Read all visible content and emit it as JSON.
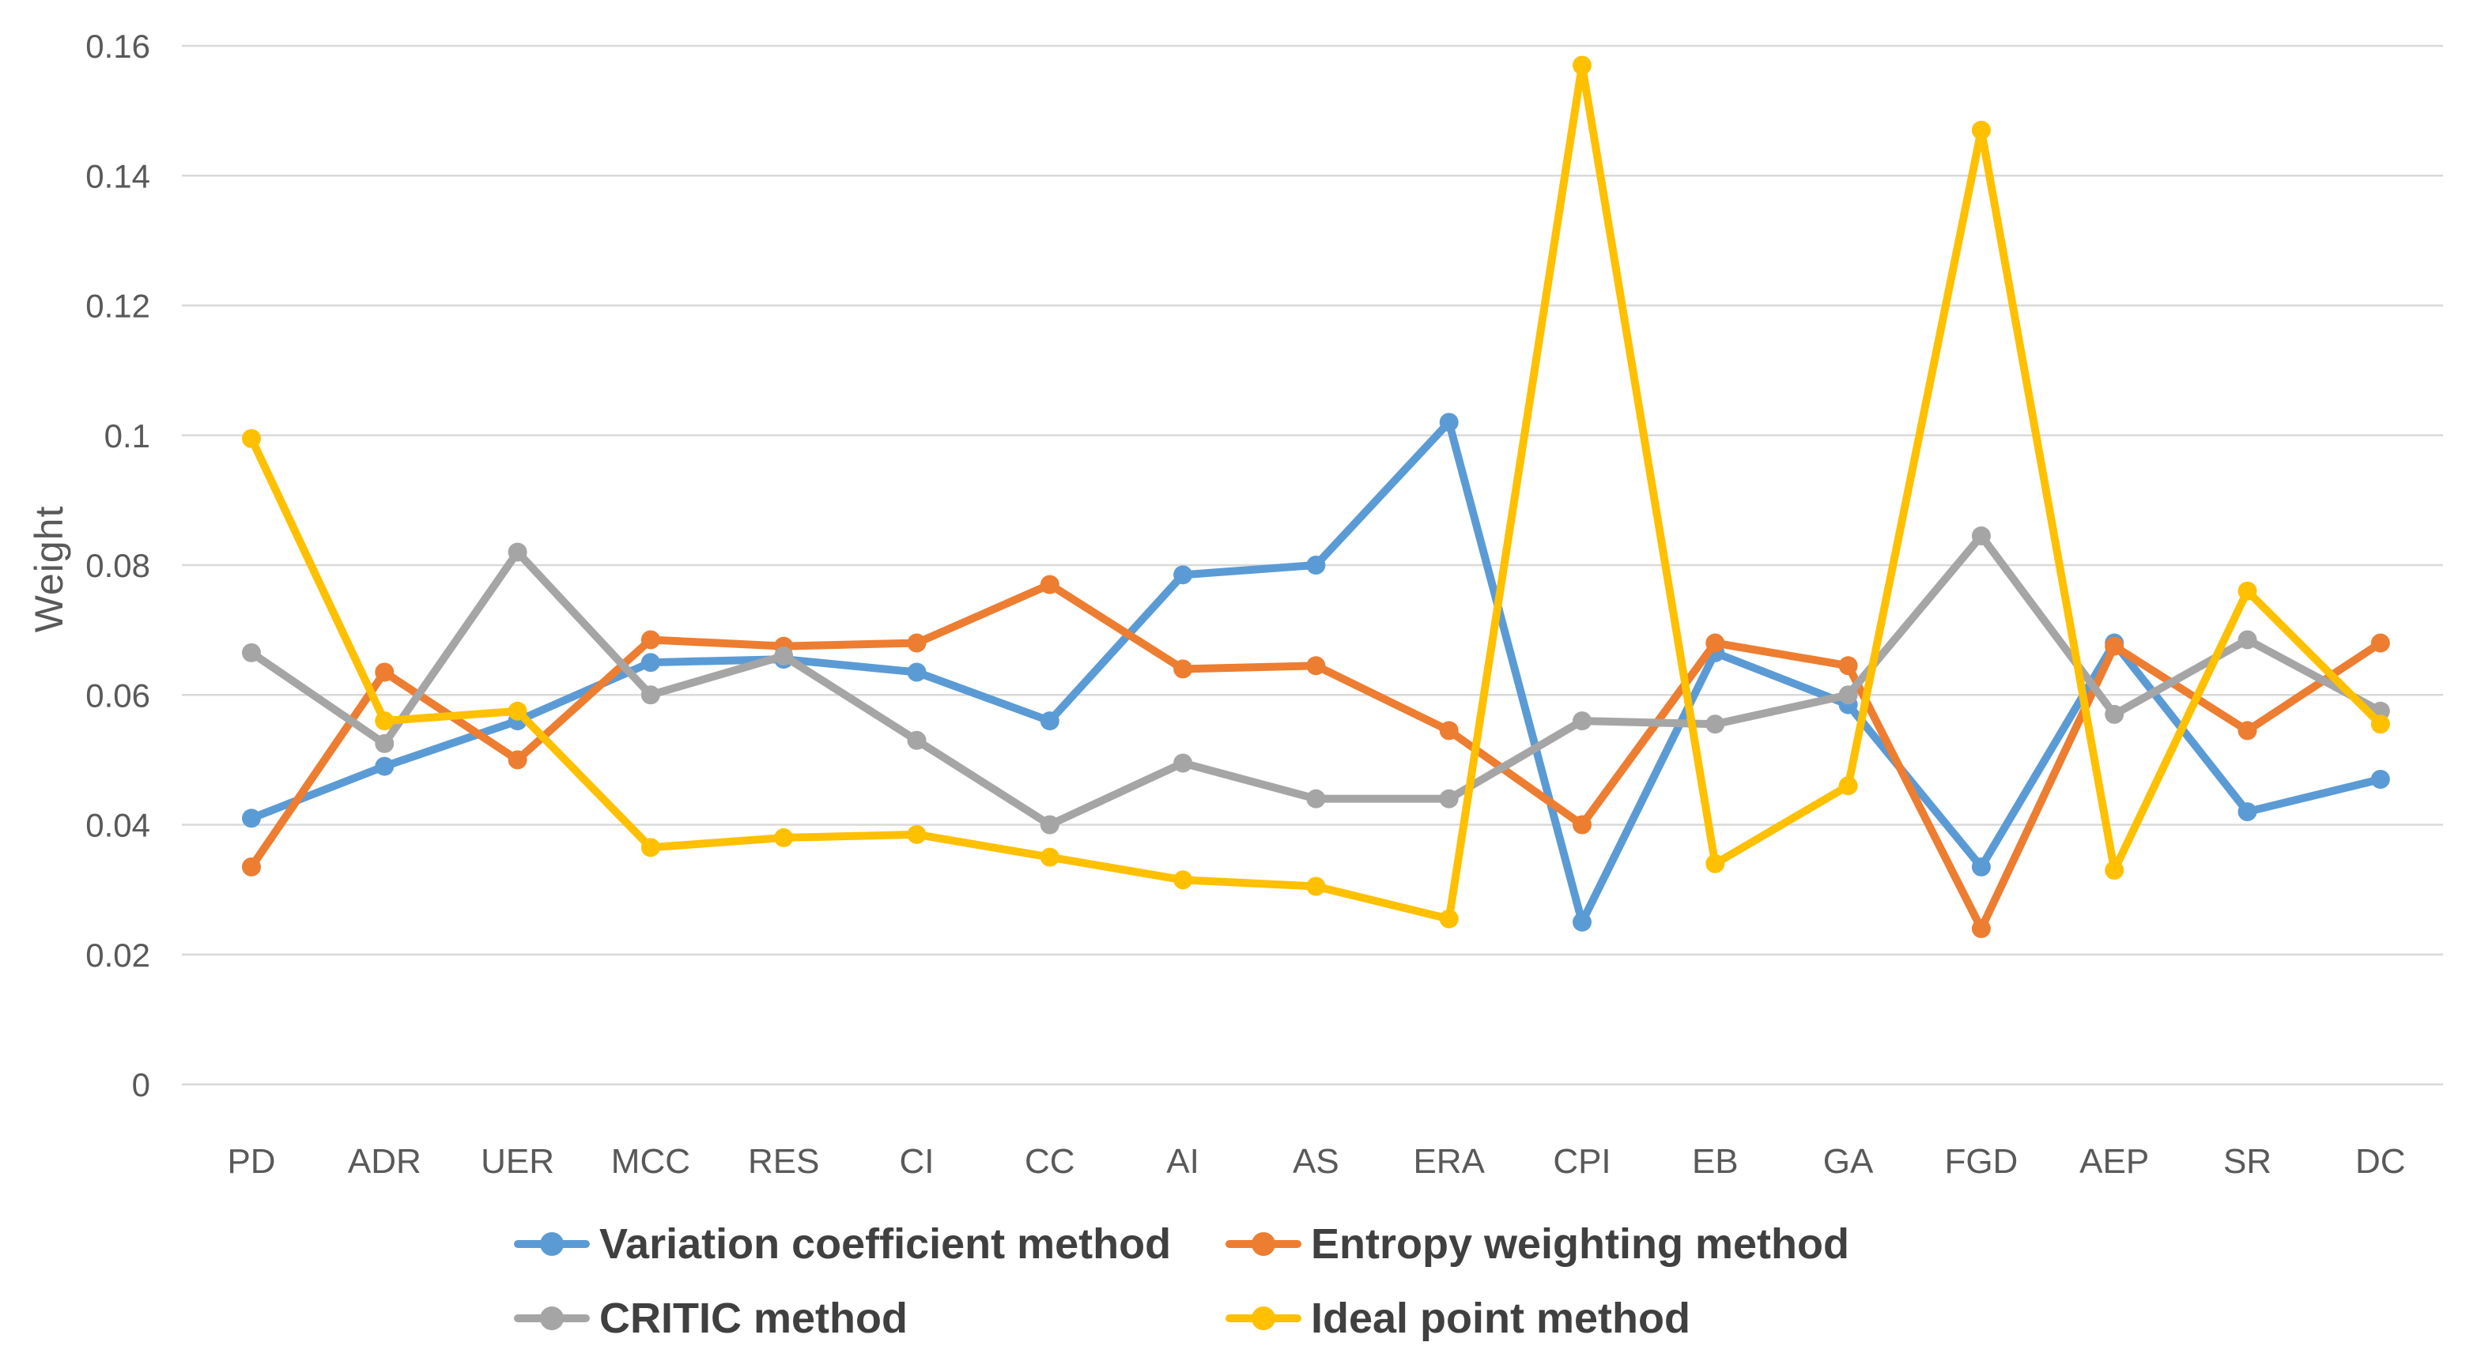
{
  "chart_data": {
    "type": "line",
    "title": "",
    "xlabel": "",
    "ylabel": "Weight",
    "ylim": [
      0,
      0.16
    ],
    "ytick_step": 0.02,
    "ytick_labels": [
      "0",
      "0.02",
      "0.04",
      "0.06",
      "0.08",
      "0.1",
      "0.12",
      "0.14",
      "0.16"
    ],
    "grid": true,
    "legend_position": "bottom",
    "categories": [
      "PD",
      "ADR",
      "UER",
      "MCC",
      "RES",
      "CI",
      "CC",
      "AI",
      "AS",
      "ERA",
      "CPI",
      "EB",
      "GA",
      "FGD",
      "AEP",
      "SR",
      "DC"
    ],
    "series": [
      {
        "name": "Variation coefficient method",
        "color": "#5B9BD5",
        "values": [
          0.041,
          0.049,
          0.056,
          0.065,
          0.0655,
          0.0635,
          0.056,
          0.0785,
          0.08,
          0.102,
          0.025,
          0.0665,
          0.0585,
          0.0335,
          0.068,
          0.042,
          0.047
        ]
      },
      {
        "name": "Entropy weighting method",
        "color": "#ED7D31",
        "values": [
          0.0335,
          0.0635,
          0.05,
          0.0685,
          0.0675,
          0.068,
          0.077,
          0.064,
          0.0645,
          0.0545,
          0.04,
          0.068,
          0.0645,
          0.024,
          0.0675,
          0.0545,
          0.068
        ]
      },
      {
        "name": "CRITIC method",
        "color": "#A5A5A5",
        "values": [
          0.0665,
          0.0525,
          0.082,
          0.06,
          0.066,
          0.053,
          0.04,
          0.0495,
          0.044,
          0.044,
          0.056,
          0.0555,
          0.06,
          0.0845,
          0.057,
          0.0685,
          0.0575
        ]
      },
      {
        "name": "Ideal point method",
        "color": "#FFC000",
        "values": [
          0.0995,
          0.056,
          0.0575,
          0.0365,
          0.038,
          0.0385,
          0.035,
          0.0315,
          0.0305,
          0.0255,
          0.157,
          0.034,
          0.046,
          0.147,
          0.033,
          0.076,
          0.0555
        ]
      }
    ],
    "colors": {
      "gridline": "#D9D9D9",
      "axis_text": "#595959",
      "legend_text": "#404040",
      "background": "#FFFFFF"
    }
  }
}
